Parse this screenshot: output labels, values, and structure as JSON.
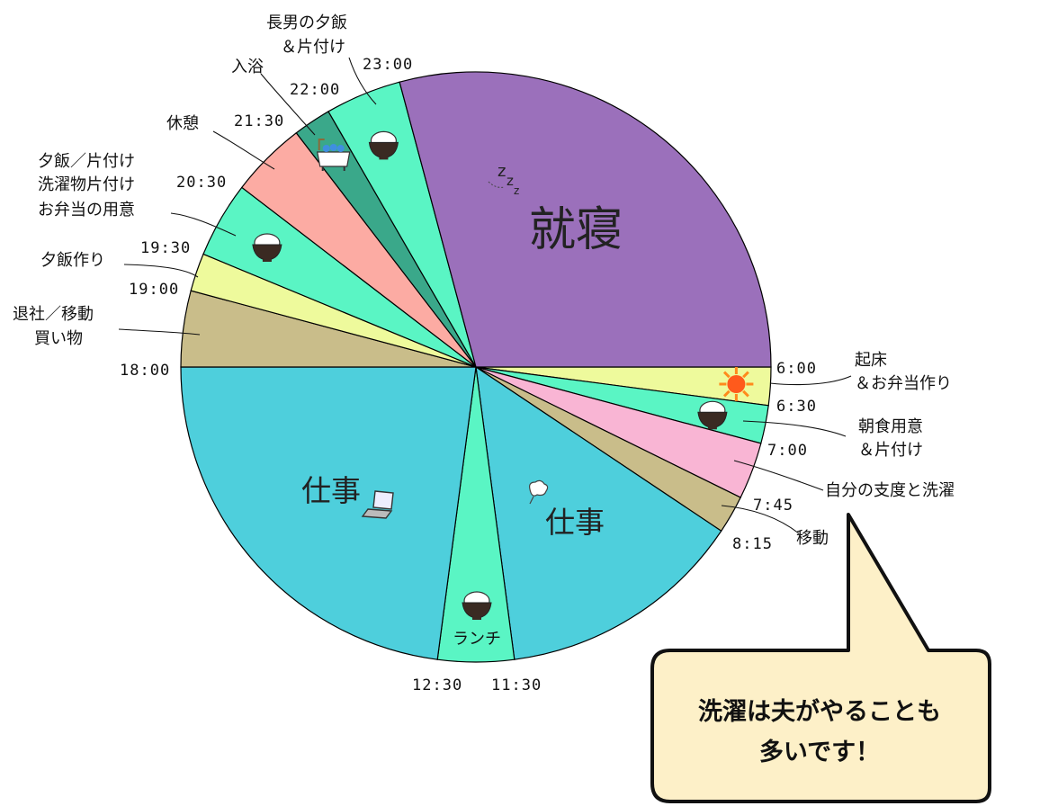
{
  "chart_data": {
    "type": "pie",
    "title": "",
    "unit": "hours",
    "series": [
      {
        "name": "起床＆お弁当作り",
        "start": "6:00",
        "end": "6:30",
        "value": 0.5,
        "color": "#eefa9c",
        "icon": "sun-icon"
      },
      {
        "name": "朝食用意＆片付け",
        "start": "6:30",
        "end": "7:00",
        "value": 0.5,
        "color": "#5af5c4",
        "icon": "rice-bowl-icon"
      },
      {
        "name": "自分の支度と洗濯",
        "start": "7:00",
        "end": "7:45",
        "value": 0.75,
        "color": "#f9b5d4",
        "icon": ""
      },
      {
        "name": "移動",
        "start": "7:45",
        "end": "8:15",
        "value": 0.5,
        "color": "#c9bd8a",
        "icon": ""
      },
      {
        "name": "仕事",
        "start": "8:15",
        "end": "11:30",
        "value": 3.25,
        "color": "#4ecfdc",
        "icon": "cough-icon"
      },
      {
        "name": "ランチ",
        "start": "11:30",
        "end": "12:30",
        "value": 1.0,
        "color": "#5af5c4",
        "icon": "rice-bowl-icon"
      },
      {
        "name": "仕事",
        "start": "12:30",
        "end": "18:00",
        "value": 5.5,
        "color": "#4ecfdc",
        "icon": "laptop-icon"
      },
      {
        "name": "退社／移動 買い物",
        "start": "18:00",
        "end": "19:00",
        "value": 1.0,
        "color": "#c9bd8a",
        "icon": ""
      },
      {
        "name": "夕飯作り",
        "start": "19:00",
        "end": "19:30",
        "value": 0.5,
        "color": "#eefa9c",
        "icon": ""
      },
      {
        "name": "夕飯／片付け 洗濯物片付け お弁当の用意",
        "start": "19:30",
        "end": "20:30",
        "value": 1.0,
        "color": "#5af5c4",
        "icon": "rice-bowl-icon"
      },
      {
        "name": "休憩",
        "start": "20:30",
        "end": "21:30",
        "value": 1.0,
        "color": "#fcaba3",
        "icon": ""
      },
      {
        "name": "入浴",
        "start": "21:30",
        "end": "22:00",
        "value": 0.5,
        "color": "#3aa88a",
        "icon": "bathtub-icon"
      },
      {
        "name": "長男の夕飯＆片付け",
        "start": "22:00",
        "end": "23:00",
        "value": 1.0,
        "color": "#5af5c4",
        "icon": "rice-bowl-icon"
      },
      {
        "name": "就寝",
        "start": "23:00",
        "end": "6:00",
        "value": 7.0,
        "color": "#9b70bb",
        "icon": "zzz-icon"
      }
    ],
    "time_ticks": [
      "6:00",
      "6:30",
      "7:00",
      "7:45",
      "8:15",
      "11:30",
      "12:30",
      "18:00",
      "19:00",
      "19:30",
      "20:30",
      "21:30",
      "22:00",
      "23:00"
    ],
    "labels": {
      "wake": [
        "起床",
        "＆お弁当作り"
      ],
      "breakfast": [
        "朝食用意",
        "＆片付け"
      ],
      "prep": "自分の支度と洗濯",
      "commute": "移動",
      "work": "仕事",
      "lunch": "ランチ",
      "leave": [
        "退社／移動",
        "買い物"
      ],
      "cook": "夕飯作り",
      "dinner": [
        "夕飯／片付け",
        "洗濯物片付け",
        "お弁当の用意"
      ],
      "rest": "休憩",
      "bath": "入浴",
      "son": [
        "長男の夕飯",
        "＆片付け"
      ],
      "sleep": "就寝"
    }
  },
  "callout": {
    "lines": [
      "洗濯は夫がやることも",
      "多いです！"
    ],
    "background": "#fdf0c8",
    "border": "#111111"
  }
}
